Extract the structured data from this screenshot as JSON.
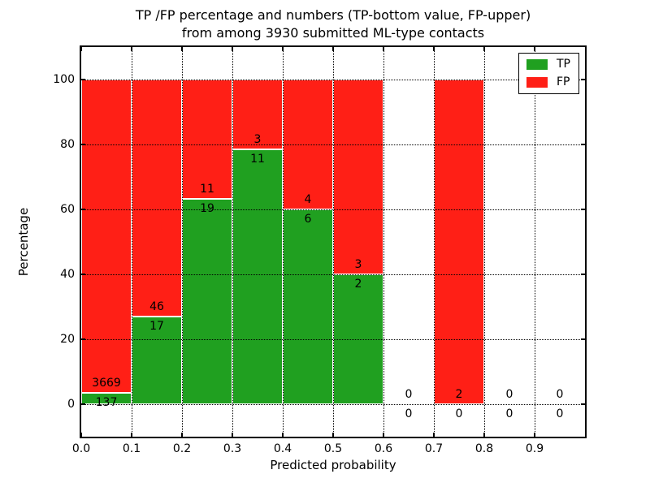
{
  "title": {
    "line1": "TP /FP percentage and numbers (TP-bottom value, FP-upper)",
    "line2": "from among 3930 submitted ML-type contacts"
  },
  "chart_data": {
    "type": "bar",
    "stacked": true,
    "title": "TP /FP percentage and numbers (TP-bottom value, FP-upper)\nfrom among 3930 submitted ML-type contacts",
    "xlabel": "Predicted probability",
    "ylabel": "Percentage",
    "total_contacts": 3930,
    "xlim": [
      0.0,
      1.0
    ],
    "ylim": [
      -10,
      110
    ],
    "grid": {
      "style": "dotted",
      "color": "#000000"
    },
    "x_ticks": [
      {
        "value": 0.0,
        "label": "0.0"
      },
      {
        "value": 0.1,
        "label": "0.1"
      },
      {
        "value": 0.2,
        "label": "0.2"
      },
      {
        "value": 0.3,
        "label": "0.3"
      },
      {
        "value": 0.4,
        "label": "0.4"
      },
      {
        "value": 0.5,
        "label": "0.5"
      },
      {
        "value": 0.6,
        "label": "0.6"
      },
      {
        "value": 0.7,
        "label": "0.7"
      },
      {
        "value": 0.8,
        "label": "0.8"
      },
      {
        "value": 0.9,
        "label": "0.9"
      }
    ],
    "y_ticks": [
      {
        "value": 0,
        "label": "0"
      },
      {
        "value": 20,
        "label": "20"
      },
      {
        "value": 40,
        "label": "40"
      },
      {
        "value": 60,
        "label": "60"
      },
      {
        "value": 80,
        "label": "80"
      },
      {
        "value": 100,
        "label": "100"
      }
    ],
    "legend": {
      "position": "upper-right",
      "entries": [
        {
          "label": "TP",
          "color": "#20a020"
        },
        {
          "label": "FP",
          "color": "#ff1f16"
        }
      ]
    },
    "bins": [
      {
        "x_start": 0.0,
        "x_end": 0.1,
        "tp": 137,
        "fp": 3669,
        "tp_pct": 3.6,
        "fp_pct": 96.4
      },
      {
        "x_start": 0.1,
        "x_end": 0.2,
        "tp": 17,
        "fp": 46,
        "tp_pct": 27.0,
        "fp_pct": 73.0
      },
      {
        "x_start": 0.2,
        "x_end": 0.3,
        "tp": 19,
        "fp": 11,
        "tp_pct": 63.3,
        "fp_pct": 36.7
      },
      {
        "x_start": 0.3,
        "x_end": 0.4,
        "tp": 11,
        "fp": 3,
        "tp_pct": 78.6,
        "fp_pct": 21.4
      },
      {
        "x_start": 0.4,
        "x_end": 0.5,
        "tp": 6,
        "fp": 4,
        "tp_pct": 60.0,
        "fp_pct": 40.0
      },
      {
        "x_start": 0.5,
        "x_end": 0.6,
        "tp": 2,
        "fp": 3,
        "tp_pct": 40.0,
        "fp_pct": 60.0
      },
      {
        "x_start": 0.6,
        "x_end": 0.7,
        "tp": 0,
        "fp": 0,
        "tp_pct": 0,
        "fp_pct": 0
      },
      {
        "x_start": 0.7,
        "x_end": 0.8,
        "tp": 0,
        "fp": 2,
        "tp_pct": 0,
        "fp_pct": 100
      },
      {
        "x_start": 0.8,
        "x_end": 0.9,
        "tp": 0,
        "fp": 0,
        "tp_pct": 0,
        "fp_pct": 0
      },
      {
        "x_start": 0.9,
        "x_end": 1.0,
        "tp": 0,
        "fp": 0,
        "tp_pct": 0,
        "fp_pct": 0
      }
    ],
    "colors": {
      "tp": "#20a020",
      "fp": "#ff1f16",
      "bar_edge": "#ffffff"
    }
  }
}
